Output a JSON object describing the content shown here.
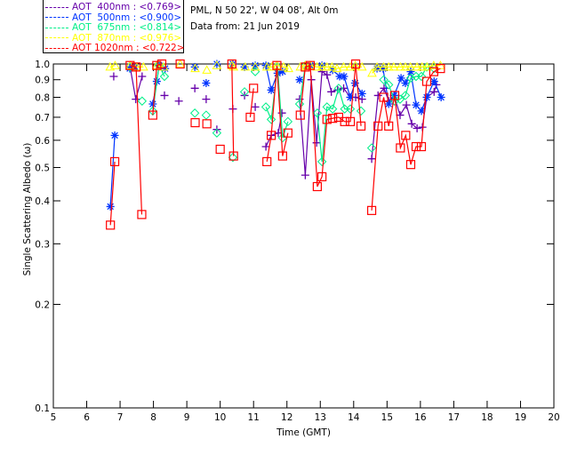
{
  "header": {
    "site": "PML, N 50 22', W 04 08', Alt 0m",
    "date": "Data from: 21 Jun 2019"
  },
  "chart_data": {
    "type": "scatter",
    "title": "",
    "xlabel": "Time (GMT)",
    "ylabel": "Single Scattering Albedo (ω)",
    "xlim": [
      5,
      20
    ],
    "ylim": [
      0.1,
      1.0
    ],
    "yscale": "log",
    "xticks": [
      "5",
      "6",
      "7",
      "8",
      "9",
      "10",
      "11",
      "12",
      "13",
      "14",
      "15",
      "16",
      "17",
      "18",
      "19",
      "20"
    ],
    "yticks": [
      "0.1",
      "0.2",
      "0.3",
      "0.4",
      "0.5",
      "0.6",
      "0.7",
      "0.8",
      "0.9",
      "1.0"
    ],
    "legend_position": "top-left-outside",
    "series": [
      {
        "name": "AOT  400nm : <0.769>",
        "label": "AOT  400nm : <0.769>",
        "color": "#6600aa",
        "marker": "plus",
        "x": [
          6.81,
          7.3,
          7.47,
          7.66,
          8.33,
          8.76,
          9.24,
          9.58,
          9.9,
          10.38,
          10.73,
          11.05,
          11.37,
          11.53,
          11.74,
          11.85,
          12.38,
          12.55,
          12.73,
          12.89,
          13.05,
          13.2,
          13.33,
          13.52,
          13.7,
          13.9,
          14.06,
          14.25,
          14.54,
          14.73,
          14.91,
          15.05,
          15.21,
          15.39,
          15.58,
          15.74,
          15.9,
          16.06,
          16.19,
          16.41,
          16.48
        ],
        "y": [
          0.92,
          0.98,
          0.79,
          0.92,
          0.81,
          0.78,
          0.85,
          0.79,
          0.645,
          0.74,
          0.81,
          0.75,
          0.575,
          0.62,
          0.63,
          0.72,
          0.79,
          0.475,
          0.9,
          0.59,
          0.95,
          0.93,
          0.83,
          0.84,
          0.85,
          0.8,
          0.8,
          0.79,
          0.53,
          0.81,
          0.85,
          0.78,
          0.81,
          0.71,
          0.76,
          0.67,
          0.65,
          0.655,
          0.8,
          0.83,
          0.87
        ]
      },
      {
        "name": "AOT  500nm : <0.900>",
        "label": "AOT  500nm : <0.900>",
        "color": "#0033ff",
        "marker": "asterisk",
        "x": [
          6.71,
          6.84,
          7.29,
          7.45,
          7.98,
          8.1,
          8.17,
          8.35,
          9.24,
          9.58,
          9.9,
          10.38,
          10.73,
          11.05,
          11.37,
          11.53,
          11.72,
          11.87,
          12.38,
          12.7,
          13.05,
          13.37,
          13.58,
          13.71,
          13.9,
          14.04,
          14.25,
          14.7,
          14.88,
          15.05,
          15.21,
          15.42,
          15.55,
          15.71,
          15.87,
          16.03,
          16.19,
          16.41,
          16.62
        ],
        "y": [
          0.385,
          0.62,
          0.97,
          0.98,
          0.765,
          0.89,
          0.99,
          0.97,
          0.98,
          0.88,
          1.0,
          1.0,
          0.98,
          0.99,
          0.99,
          0.84,
          0.94,
          0.95,
          0.9,
          0.99,
          0.99,
          0.96,
          0.92,
          0.92,
          0.8,
          0.88,
          0.82,
          0.97,
          0.97,
          0.765,
          0.81,
          0.91,
          0.88,
          0.95,
          0.76,
          0.73,
          0.8,
          0.89,
          0.8
        ]
      },
      {
        "name": "AOT  675nm : <0.814>",
        "label": "AOT  675nm : <0.814>",
        "color": "#00ee88",
        "marker": "diamond",
        "x": [
          7.3,
          7.66,
          7.98,
          8.17,
          8.33,
          9.24,
          9.58,
          9.9,
          10.38,
          10.73,
          11.05,
          11.37,
          11.53,
          11.72,
          11.87,
          12.03,
          12.38,
          12.55,
          12.91,
          13.05,
          13.2,
          13.37,
          13.55,
          13.73,
          13.9,
          14.22,
          14.54,
          14.9,
          15.05,
          15.23,
          15.39,
          15.55,
          15.71,
          15.87,
          16.03,
          16.19,
          16.41
        ],
        "y": [
          0.98,
          0.78,
          0.73,
          0.99,
          0.92,
          0.72,
          0.71,
          0.63,
          0.535,
          0.83,
          0.95,
          0.75,
          0.69,
          0.98,
          0.61,
          0.68,
          0.765,
          0.99,
          0.72,
          0.52,
          0.75,
          0.74,
          0.85,
          0.74,
          0.74,
          0.73,
          0.57,
          0.9,
          0.87,
          0.78,
          0.79,
          0.81,
          0.91,
          0.92,
          0.92,
          0.98,
          0.97
        ]
      },
      {
        "name": "AOT  870nm : <0.976>",
        "label": "AOT  870nm : <0.976>",
        "color": "#ffff00",
        "marker": "triangle",
        "x": [
          6.7,
          6.85,
          7.3,
          7.5,
          7.7,
          8.1,
          8.3,
          8.8,
          9.25,
          9.6,
          9.9,
          10.35,
          10.4,
          10.75,
          11.05,
          11.4,
          11.55,
          11.7,
          11.9,
          12.05,
          12.4,
          12.55,
          12.7,
          12.9,
          13.05,
          13.2,
          13.35,
          13.5,
          13.7,
          13.9,
          14.05,
          14.25,
          14.55,
          14.7,
          14.9,
          15.05,
          15.2,
          15.4,
          15.55,
          15.7,
          15.9,
          16.05,
          16.2,
          16.4,
          16.6
        ],
        "y": [
          0.98,
          0.99,
          0.99,
          0.98,
          0.98,
          0.99,
          0.98,
          1.0,
          0.97,
          0.96,
          0.99,
          0.99,
          0.98,
          0.98,
          0.98,
          0.98,
          0.98,
          0.99,
          0.98,
          0.97,
          0.98,
          0.99,
          0.99,
          0.98,
          0.98,
          0.98,
          0.98,
          0.97,
          0.98,
          0.98,
          0.99,
          0.98,
          0.94,
          0.98,
          0.98,
          0.98,
          0.98,
          0.98,
          0.98,
          0.98,
          0.98,
          0.98,
          0.98,
          0.99,
          0.99
        ]
      },
      {
        "name": "AOT 1020nm : <0.722>",
        "label": "AOT 1020nm : <0.722>",
        "color": "#ff0000",
        "marker": "square",
        "x": [
          6.71,
          6.84,
          7.3,
          7.48,
          7.65,
          7.98,
          8.1,
          8.25,
          8.8,
          9.25,
          9.6,
          10.0,
          10.35,
          10.4,
          10.9,
          11.0,
          11.4,
          11.53,
          11.7,
          11.87,
          12.03,
          12.4,
          12.55,
          12.7,
          12.91,
          13.05,
          13.2,
          13.37,
          13.55,
          13.73,
          13.9,
          14.06,
          14.22,
          14.54,
          14.73,
          14.9,
          15.05,
          15.23,
          15.4,
          15.56,
          15.71,
          15.87,
          16.03,
          16.19,
          16.4,
          16.6
        ],
        "y": [
          0.34,
          0.52,
          0.99,
          0.98,
          0.365,
          0.71,
          0.99,
          1.0,
          1.0,
          0.675,
          0.67,
          0.565,
          1.0,
          0.54,
          0.7,
          0.85,
          0.52,
          0.62,
          0.99,
          0.54,
          0.63,
          0.71,
          0.98,
          0.99,
          0.44,
          0.47,
          0.69,
          0.695,
          0.7,
          0.68,
          0.68,
          1.0,
          0.66,
          0.375,
          0.66,
          0.8,
          0.66,
          0.81,
          0.57,
          0.62,
          0.51,
          0.575,
          0.575,
          0.89,
          0.95,
          0.97
        ]
      }
    ]
  }
}
